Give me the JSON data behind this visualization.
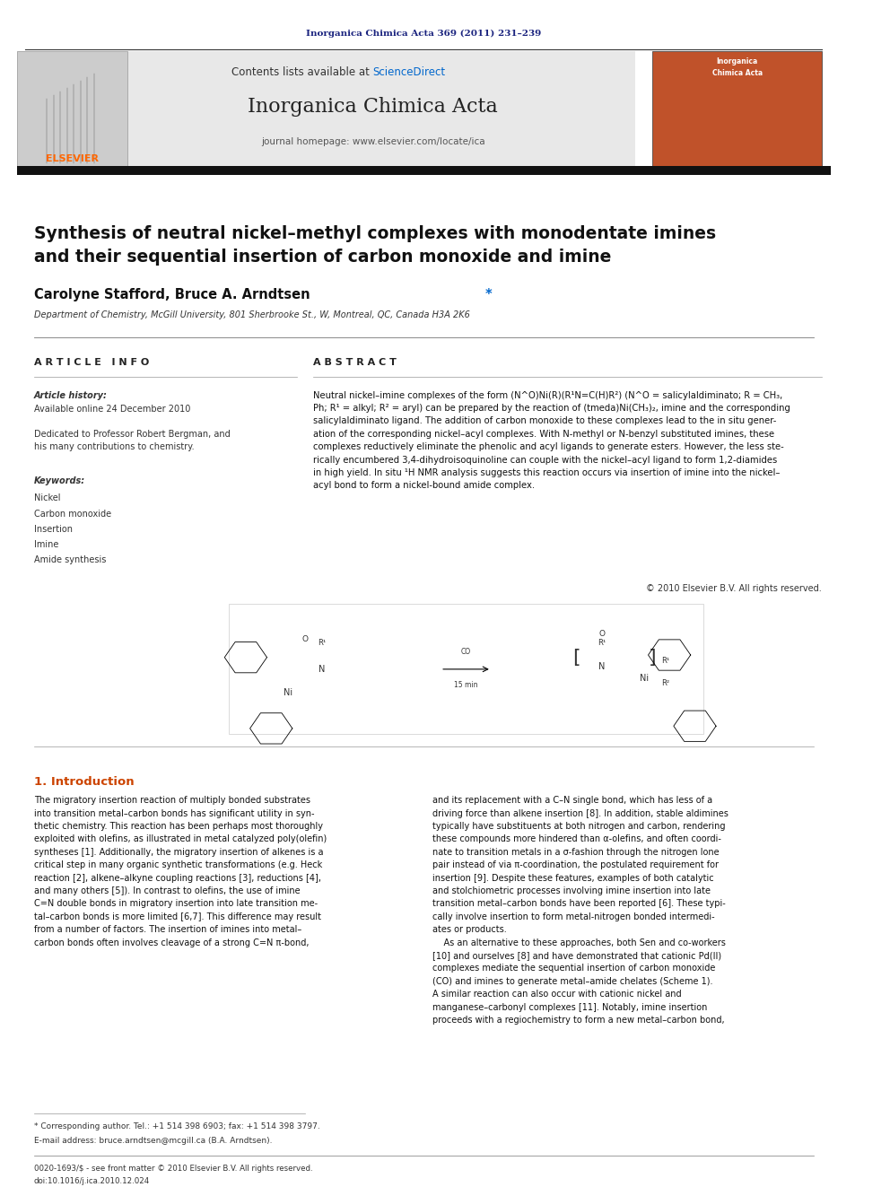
{
  "background_color": "#ffffff",
  "page_width": 9.92,
  "page_height": 13.23,
  "journal_ref": "Inorganica Chimica Acta 369 (2011) 231–239",
  "journal_ref_color": "#1a237e",
  "header_bg": "#e8e8e8",
  "header_journal_name": "Inorganica Chimica Acta",
  "header_contents": "Contents lists available at",
  "header_sciencedirect": "ScienceDirect",
  "header_sciencedirect_color": "#0066cc",
  "header_homepage": "journal homepage: www.elsevier.com/locate/ica",
  "elsevier_color": "#ff6600",
  "title": "Synthesis of neutral nickel–methyl complexes with monodentate imines\nand their sequential insertion of carbon monoxide and imine",
  "authors": "Carolyne Stafford, Bruce A. Arndtsen *",
  "affiliation": "Department of Chemistry, McGill University, 801 Sherbrooke St., W, Montreal, QC, Canada H3A 2K6",
  "article_info_title": "A R T I C L E   I N F O",
  "abstract_title": "A B S T R A C T",
  "article_history_label": "Article history:",
  "available_online": "Available online 24 December 2010",
  "dedicated": "Dedicated to Professor Robert Bergman, and\nhis many contributions to chemistry.",
  "keywords_title": "Keywords:",
  "keywords": [
    "Nickel",
    "Carbon monoxide",
    "Insertion",
    "Imine",
    "Amide synthesis"
  ],
  "abstract_text": "Neutral nickel–imine complexes of the form (N^O)Ni(R)(R¹N=C(H)R²) (N^O = salicylaldiminato; R = CH₃,\nPh; R¹ = alkyl; R² = aryl) can be prepared by the reaction of (tmeda)Ni(CH₃)₂, imine and the corresponding\nsalicylaldiminato ligand. The addition of carbon monoxide to these complexes lead to the in situ gener-\nation of the corresponding nickel–acyl complexes. With N-methyl or N-benzyl substituted imines, these\ncomplexes reductively eliminate the phenolic and acyl ligands to generate esters. However, the less ste-\nrically encumbered 3,4-dihydroisoquinoline can couple with the nickel–acyl ligand to form 1,2-diamides\nin high yield. In situ ¹H NMR analysis suggests this reaction occurs via insertion of imine into the nickel–\nacyl bond to form a nickel-bound amide complex.",
  "copyright_text": "© 2010 Elsevier B.V. All rights reserved.",
  "section1_title": "1. Introduction",
  "intro_col1": "The migratory insertion reaction of multiply bonded substrates\ninto transition metal–carbon bonds has significant utility in syn-\nthetic chemistry. This reaction has been perhaps most thoroughly\nexploited with olefins, as illustrated in metal catalyzed poly(olefin)\nsyntheses [1]. Additionally, the migratory insertion of alkenes is a\ncritical step in many organic synthetic transformations (e.g. Heck\nreaction [2], alkene–alkyne coupling reactions [3], reductions [4],\nand many others [5]). In contrast to olefins, the use of imine\nC=N double bonds in migratory insertion into late transition me-\ntal–carbon bonds is more limited [6,7]. This difference may result\nfrom a number of factors. The insertion of imines into metal–\ncarbon bonds often involves cleavage of a strong C=N π-bond,",
  "intro_col2": "and its replacement with a C–N single bond, which has less of a\ndriving force than alkene insertion [8]. In addition, stable aldimines\ntypically have substituents at both nitrogen and carbon, rendering\nthese compounds more hindered than α-olefins, and often coordi-\nnate to transition metals in a σ-fashion through the nitrogen lone\npair instead of via π-coordination, the postulated requirement for\ninsertion [9]. Despite these features, examples of both catalytic\nand stolchiometric processes involving imine insertion into late\ntransition metal–carbon bonds have been reported [6]. These typi-\ncally involve insertion to form metal-nitrogen bonded intermedi-\nates or products.\n    As an alternative to these approaches, both Sen and co-workers\n[10] and ourselves [8] and have demonstrated that cationic Pd(II)\ncomplexes mediate the sequential insertion of carbon monoxide\n(CO) and imines to generate metal–amide chelates (Scheme 1).\nA similar reaction can also occur with cationic nickel and\nmanganese–carbonyl complexes [11]. Notably, imine insertion\nproceeds with a regiochemistry to form a new metal–carbon bond,",
  "footnote_star": "* Corresponding author. Tel.: +1 514 398 6903; fax: +1 514 398 3797.",
  "footnote_email": "E-mail address: bruce.arndtsen@mcgill.ca (B.A. Arndtsen).",
  "footer_issn": "0020-1693/$ - see front matter © 2010 Elsevier B.V. All rights reserved.",
  "footer_doi": "doi:10.1016/j.ica.2010.12.024"
}
